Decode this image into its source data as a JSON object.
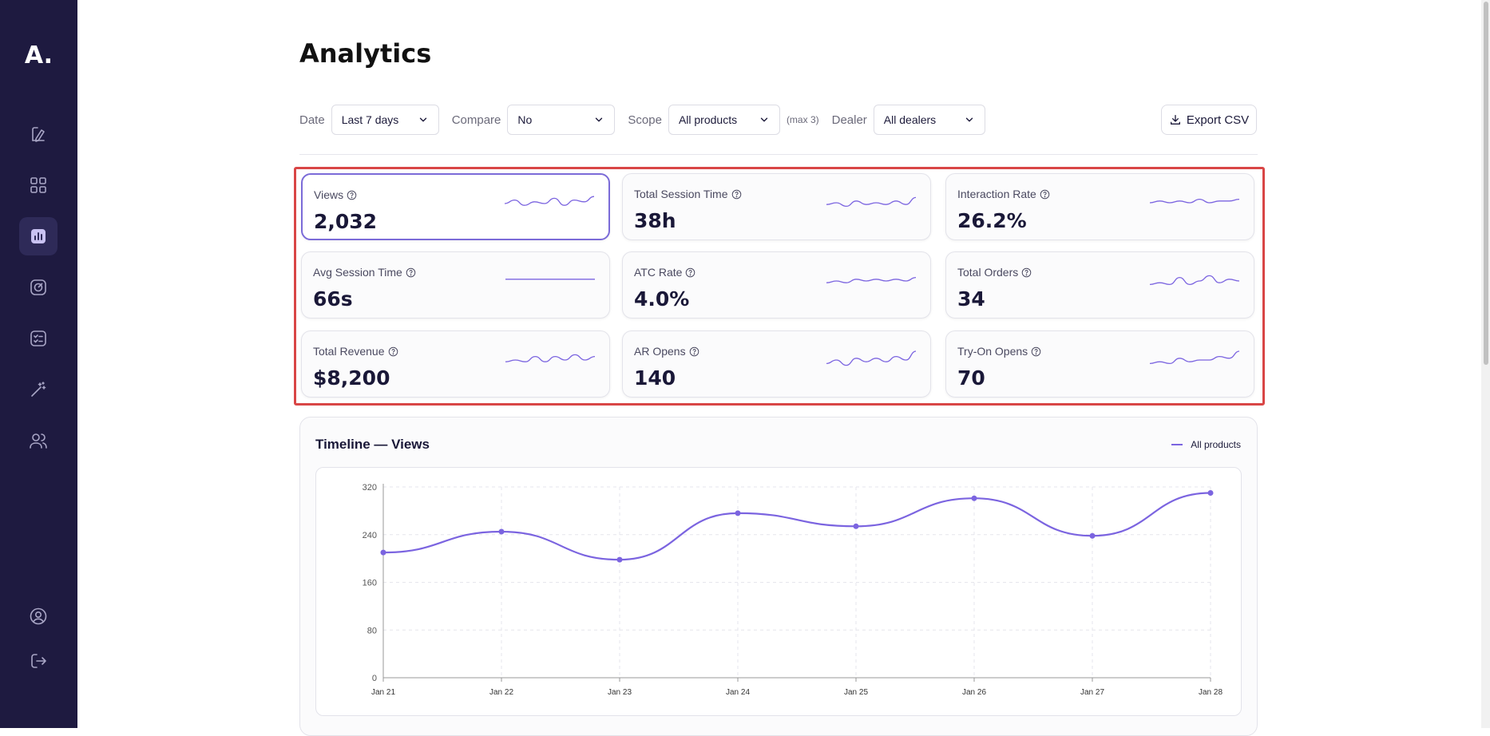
{
  "sidebar": {
    "logo": "A.",
    "items": [
      {
        "name": "sidebar-item-products",
        "icon": "cube-pencil-icon"
      },
      {
        "name": "sidebar-item-dashboard",
        "icon": "grid-icon"
      },
      {
        "name": "sidebar-item-analytics",
        "icon": "chart-icon",
        "active": true
      },
      {
        "name": "sidebar-item-tracking",
        "icon": "target-icon"
      },
      {
        "name": "sidebar-item-tasks",
        "icon": "checklist-icon"
      },
      {
        "name": "sidebar-item-magic",
        "icon": "magic-wand-icon"
      },
      {
        "name": "sidebar-item-users",
        "icon": "users-icon"
      }
    ],
    "bottom": [
      {
        "name": "sidebar-item-account",
        "icon": "user-circle-icon"
      },
      {
        "name": "sidebar-item-logout",
        "icon": "logout-icon"
      }
    ]
  },
  "page": {
    "title": "Analytics"
  },
  "filters": {
    "date": {
      "label": "Date",
      "value": "Last 7 days"
    },
    "compare": {
      "label": "Compare",
      "value": "No"
    },
    "scope": {
      "label": "Scope",
      "value": "All products",
      "note": "(max 3)"
    },
    "dealer": {
      "label": "Dealer",
      "value": "All dealers"
    },
    "export_label": "Export CSV"
  },
  "metrics": [
    {
      "label": "Views",
      "value": "2,032",
      "selected": true,
      "spark": [
        5,
        3,
        6,
        4,
        5,
        2,
        6,
        3,
        4,
        1
      ]
    },
    {
      "label": "Total Session Time",
      "value": "38h",
      "spark": [
        6,
        5,
        7,
        4,
        6,
        5,
        6,
        4,
        6,
        2
      ]
    },
    {
      "label": "Interaction Rate",
      "value": "26.2%",
      "spark": [
        5,
        4,
        5,
        4,
        5,
        3,
        5,
        4,
        4,
        3
      ]
    },
    {
      "label": "Avg Session Time",
      "value": "66s",
      "spark": [
        4,
        4,
        4,
        4,
        4,
        4,
        4,
        4,
        4,
        4
      ]
    },
    {
      "label": "ATC Rate",
      "value": "4.0%",
      "spark": [
        6,
        5,
        6,
        4,
        5,
        4,
        5,
        4,
        5,
        3
      ]
    },
    {
      "label": "Total Orders",
      "value": "34",
      "spark": [
        7,
        6,
        7,
        3,
        7,
        5,
        2,
        6,
        4,
        5
      ]
    },
    {
      "label": "Total Revenue",
      "value": "$8,200",
      "spark": [
        6,
        5,
        6,
        3,
        6,
        3,
        5,
        2,
        5,
        3
      ]
    },
    {
      "label": "AR Opens",
      "value": "140",
      "spark": [
        7,
        5,
        8,
        4,
        6,
        4,
        6,
        3,
        5,
        0
      ]
    },
    {
      "label": "Try-On Opens",
      "value": "70",
      "spark": [
        7,
        6,
        7,
        4,
        6,
        5,
        5,
        3,
        4,
        0
      ]
    }
  ],
  "timeline": {
    "title": "Timeline — Views",
    "legend": "All products"
  },
  "chart_data": {
    "type": "line",
    "title": "Timeline — Views",
    "x": [
      "Jan 21",
      "Jan 22",
      "Jan 23",
      "Jan 24",
      "Jan 25",
      "Jan 26",
      "Jan 27",
      "Jan 28"
    ],
    "series": [
      {
        "name": "All products",
        "values": [
          210,
          245,
          198,
          276,
          254,
          301,
          238,
          310
        ]
      }
    ],
    "ylim": [
      0,
      320
    ],
    "yticks": [
      0,
      80,
      160,
      240,
      320
    ],
    "grid": true,
    "legend": "top-right",
    "color": "#7b64e0"
  },
  "colors": {
    "accent": "#7b64e0",
    "sidebar": "#1e1a40",
    "highlight": "#d94646",
    "chat": "#1f6fbd"
  }
}
